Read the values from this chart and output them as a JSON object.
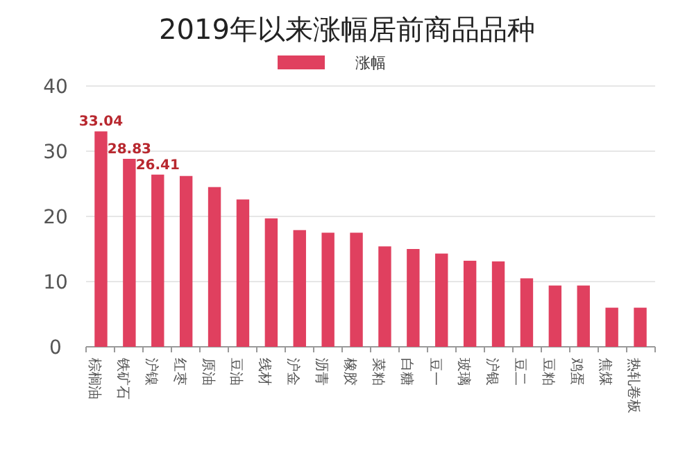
{
  "chart_data": {
    "type": "bar",
    "title": "2019年以来涨幅居前商品品种",
    "categories": [
      "棕榈油",
      "铁矿石",
      "沪镍",
      "红枣",
      "原油",
      "豆油",
      "线材",
      "沪金",
      "沥青",
      "橡胶",
      "菜粕",
      "白糖",
      "豆一",
      "玻璃",
      "沪银",
      "豆二",
      "豆粕",
      "鸡蛋",
      "焦煤",
      "热轧卷板"
    ],
    "series": [
      {
        "name": "涨幅",
        "color": "#e0405f",
        "values": [
          33.04,
          28.83,
          26.41,
          26.2,
          24.5,
          22.6,
          19.7,
          17.9,
          17.5,
          17.5,
          15.4,
          15.0,
          14.3,
          13.2,
          13.1,
          10.5,
          9.4,
          9.4,
          6.0,
          6.0
        ],
        "value_labels": [
          "33.04",
          "28.83",
          "26.41",
          null,
          null,
          null,
          null,
          null,
          null,
          null,
          null,
          null,
          null,
          null,
          null,
          null,
          null,
          null,
          null,
          null
        ]
      }
    ],
    "ylim": [
      0,
      40
    ],
    "yticks": [
      0,
      10,
      20,
      30,
      40
    ],
    "grid": "y",
    "legend": "top"
  }
}
